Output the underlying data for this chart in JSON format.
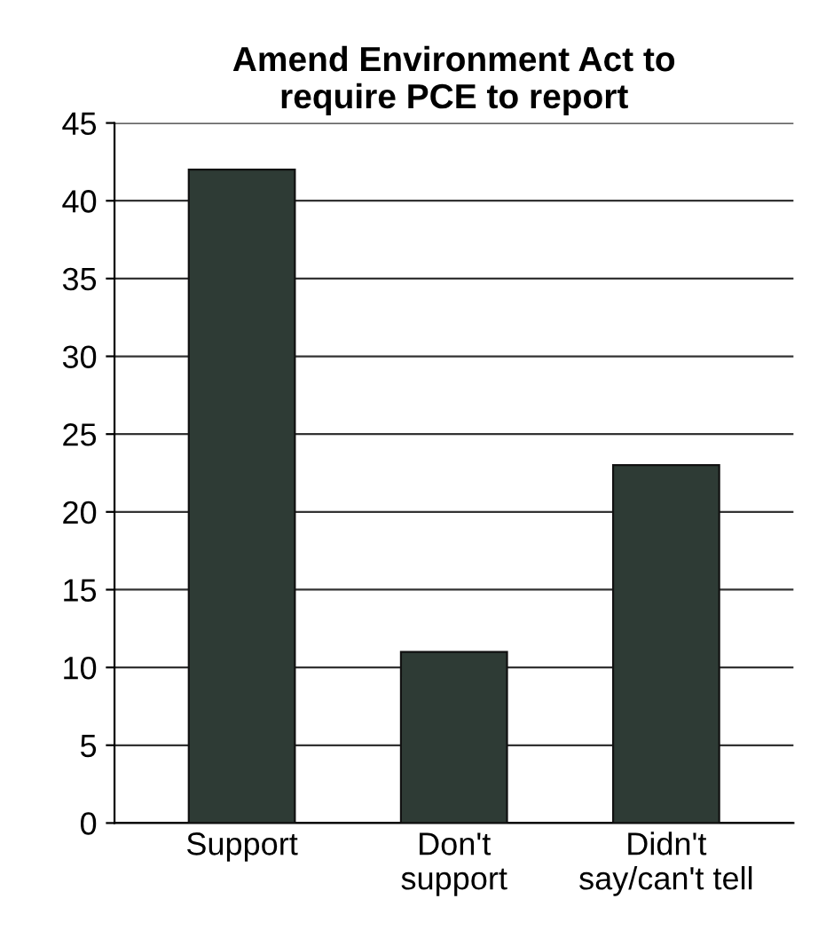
{
  "chart_data": {
    "type": "bar",
    "title": "Amend Environment Act to\nrequire PCE to report",
    "categories": [
      "Support",
      "Don't\nsupport",
      "Didn't\nsay/can't tell"
    ],
    "values": [
      42,
      11,
      23
    ],
    "color": "#2e3b35",
    "ylim": [
      0,
      45
    ],
    "yticks": [
      0,
      5,
      10,
      15,
      20,
      25,
      30,
      35,
      40,
      45
    ],
    "grid": "y"
  }
}
